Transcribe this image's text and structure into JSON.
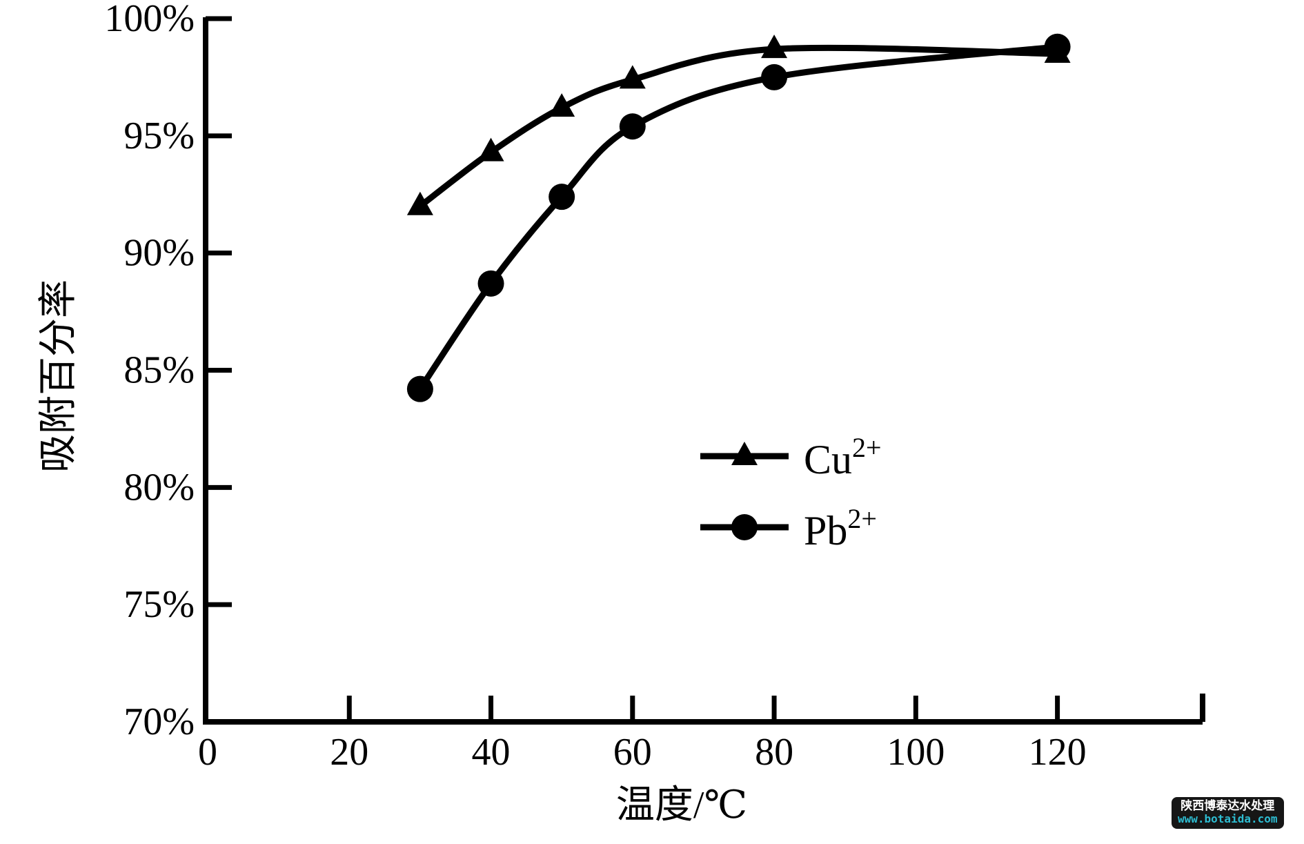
{
  "chart_data": {
    "type": "line",
    "title": "",
    "xlabel": "温度/℃",
    "ylabel": "吸附百分率",
    "x": [
      30,
      40,
      50,
      60,
      80,
      120
    ],
    "series": [
      {
        "name": "Cu2+",
        "label_base": "Cu",
        "label_sup": "2+",
        "marker": "triangle",
        "values": [
          92.0,
          94.3,
          96.2,
          97.4,
          98.7,
          98.5
        ]
      },
      {
        "name": "Pb2+",
        "label_base": "Pb",
        "label_sup": "2+",
        "marker": "circle",
        "values": [
          84.2,
          88.7,
          92.4,
          95.4,
          97.5,
          98.8
        ]
      }
    ],
    "xlim": [
      0,
      140.5
    ],
    "ylim": [
      70,
      100
    ],
    "x_ticks": [
      0,
      20,
      40,
      60,
      80,
      100,
      120
    ],
    "x_tick_labels": [
      "0",
      "20",
      "40",
      "60",
      "80",
      "100",
      "120"
    ],
    "x_axis_end_tick_unlabeled": true,
    "y_ticks": [
      70,
      75,
      80,
      85,
      90,
      95,
      100
    ],
    "y_tick_labels": [
      "70%",
      "75%",
      "80%",
      "85%",
      "90%",
      "95%",
      "100%"
    ],
    "grid": false,
    "legend_position": "inside-center-right",
    "line_color": "#000000",
    "axis_color": "#000000",
    "background": "#ffffff"
  },
  "watermark": {
    "line1": "陕西博泰达水处理",
    "line2": "www.botaida.com",
    "bg_color": "#161616",
    "line1_color": "#ffffff",
    "line2_color": "#2dbcd1"
  }
}
